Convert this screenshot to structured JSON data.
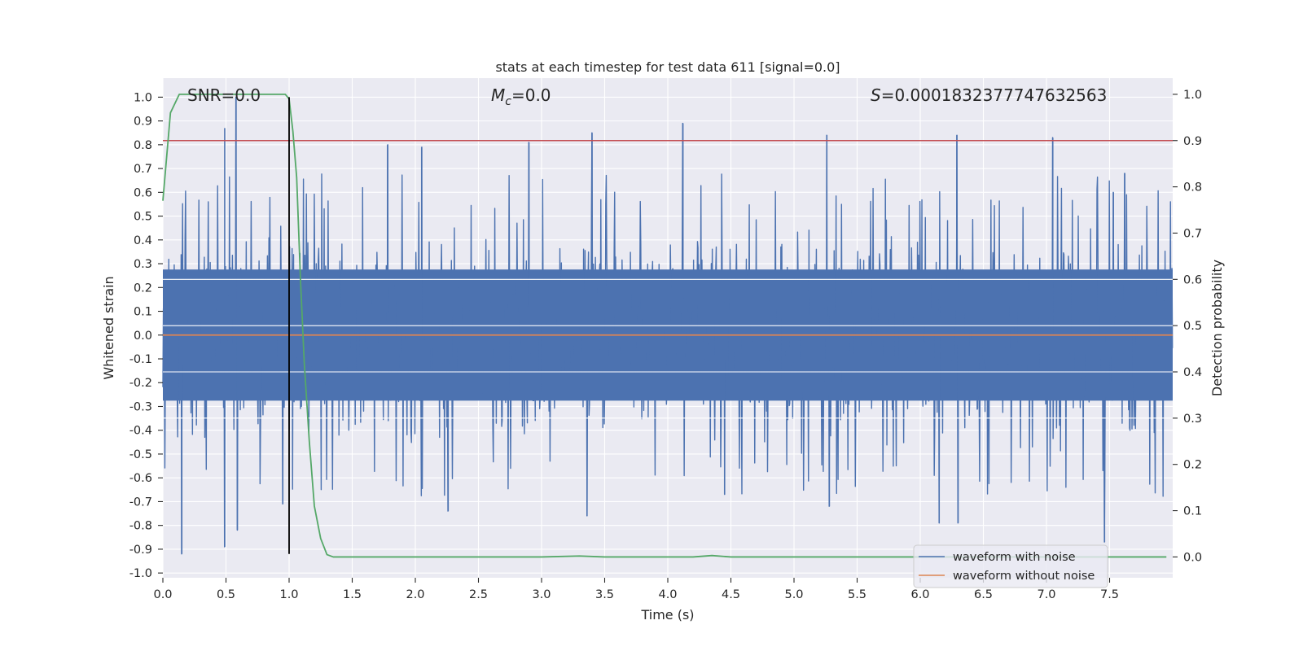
{
  "chart_data": {
    "type": "line",
    "title": "stats at each timestep for test data 611 [signal=0.0]",
    "xlabel": "Time (s)",
    "ylabel": "Whitened strain",
    "y2label": "Detection probability",
    "xlim": [
      0.0,
      8.0
    ],
    "ylim": [
      -1.02,
      1.08
    ],
    "y2lim": [
      -0.045,
      1.035
    ],
    "x_ticks": [
      "0.0",
      "0.5",
      "1.0",
      "1.5",
      "2.0",
      "2.5",
      "3.0",
      "3.5",
      "4.0",
      "4.5",
      "5.0",
      "5.5",
      "6.0",
      "6.5",
      "7.0",
      "7.5"
    ],
    "x_tick_values": [
      0.0,
      0.5,
      1.0,
      1.5,
      2.0,
      2.5,
      3.0,
      3.5,
      4.0,
      4.5,
      5.0,
      5.5,
      6.0,
      6.5,
      7.0,
      7.5
    ],
    "y_ticks": [
      "1.0",
      "0.9",
      "0.8",
      "0.7",
      "0.6",
      "0.5",
      "0.4",
      "0.3",
      "0.2",
      "0.1",
      "0.0",
      "-0.1",
      "-0.2",
      "-0.3",
      "-0.4",
      "-0.5",
      "-0.6",
      "-0.7",
      "-0.8",
      "-0.9",
      "-1.0"
    ],
    "y_tick_values": [
      1.0,
      0.9,
      0.8,
      0.7,
      0.6,
      0.5,
      0.4,
      0.3,
      0.2,
      0.1,
      0.0,
      -0.1,
      -0.2,
      -0.3,
      -0.4,
      -0.5,
      -0.6,
      -0.7,
      -0.8,
      -0.9,
      -1.0
    ],
    "y2_ticks": [
      "1.0",
      "0.9",
      "0.8",
      "0.7",
      "0.6",
      "0.5",
      "0.4",
      "0.3",
      "0.2",
      "0.1",
      "0.0"
    ],
    "y2_tick_values": [
      1.0,
      0.9,
      0.8,
      0.7,
      0.6,
      0.5,
      0.4,
      0.3,
      0.2,
      0.1,
      0.0
    ],
    "annotations": {
      "snr": "SNR=0.0",
      "mc_symbol": "M",
      "mc_sub": "c",
      "mc_value": "=0.0",
      "s_symbol": "S",
      "s_value": "=0.0001832377747632563"
    },
    "legend": {
      "position": "lower-right",
      "entries": [
        "waveform with noise",
        "waveform without noise"
      ]
    },
    "colors": {
      "noise": "#4c72b0",
      "clean": "#dd8452",
      "probability": "#55a868",
      "threshold": "#c44e52",
      "marker": "#000000",
      "plot_bg": "#eaeaf2",
      "grid": "#ffffff"
    },
    "series": [
      {
        "name": "waveform with noise",
        "axis": "left",
        "style": "dense_noise",
        "x_range": [
          0.0,
          7.998
        ],
        "samples": 2048,
        "body_sigma": 0.18,
        "upper_envelope": 0.53,
        "lower_envelope": -0.53,
        "max": 1.0,
        "min": -0.92,
        "spikes": [
          [
            0.15,
            -0.92
          ],
          [
            0.49,
            0.87
          ],
          [
            0.49,
            -0.89
          ],
          [
            0.58,
            1.0
          ],
          [
            0.59,
            -0.82
          ],
          [
            0.95,
            -0.71
          ],
          [
            1.78,
            0.8
          ],
          [
            2.05,
            0.79
          ],
          [
            2.26,
            -0.74
          ],
          [
            2.9,
            0.81
          ],
          [
            3.36,
            -0.76
          ],
          [
            3.4,
            0.85
          ],
          [
            4.12,
            0.89
          ],
          [
            4.45,
            -0.67
          ],
          [
            5.26,
            0.84
          ],
          [
            5.28,
            -0.72
          ],
          [
            6.15,
            -0.79
          ],
          [
            6.29,
            0.84
          ],
          [
            6.3,
            -0.79
          ],
          [
            7.05,
            0.83
          ],
          [
            7.46,
            -0.87
          ],
          [
            7.53,
            0.6
          ],
          [
            7.62,
            0.68
          ]
        ]
      },
      {
        "name": "waveform without noise",
        "axis": "left",
        "x": [
          0.0,
          8.0
        ],
        "y": [
          0.0,
          0.0
        ]
      },
      {
        "name": "detection probability",
        "axis": "right",
        "x": [
          0.0,
          0.06,
          0.13,
          0.2,
          0.3,
          0.45,
          0.6,
          0.75,
          0.9,
          0.97,
          1.0,
          1.03,
          1.06,
          1.09,
          1.12,
          1.16,
          1.2,
          1.25,
          1.3,
          1.35,
          1.45,
          1.6,
          2.0,
          3.0,
          3.3,
          3.5,
          4.0,
          4.2,
          4.35,
          4.5,
          5.0,
          6.0,
          7.0,
          7.5,
          7.95
        ],
        "y": [
          0.77,
          0.96,
          1.0,
          1.0,
          1.0,
          1.0,
          1.0,
          1.0,
          1.0,
          1.0,
          0.99,
          0.92,
          0.82,
          0.6,
          0.42,
          0.25,
          0.11,
          0.04,
          0.005,
          0.0,
          0.0,
          0.0,
          0.0,
          0.0,
          0.002,
          0.0,
          0.0,
          0.0,
          0.003,
          0.0,
          0.0,
          0.0,
          0.0,
          0.0,
          0.0
        ]
      },
      {
        "name": "threshold",
        "axis": "right",
        "x": [
          0.0,
          8.0
        ],
        "y": [
          0.9,
          0.9
        ]
      },
      {
        "name": "time marker",
        "axis": "left",
        "x": [
          1.0,
          1.0
        ],
        "y": [
          -0.92,
          1.0
        ]
      }
    ]
  }
}
